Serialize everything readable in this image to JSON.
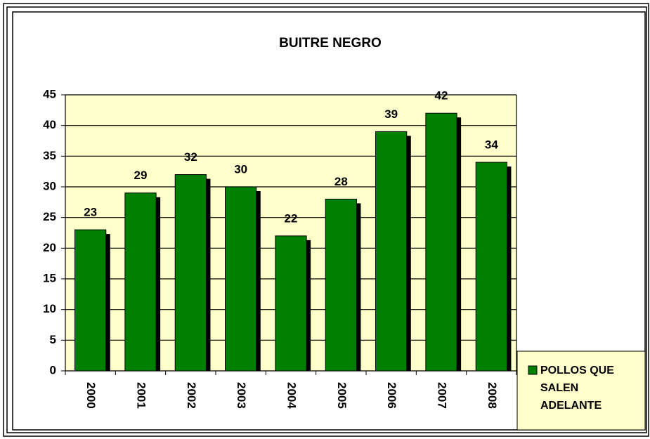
{
  "chart_data": {
    "type": "bar",
    "title": "BUITRE NEGRO",
    "categories": [
      "2000",
      "2001",
      "2002",
      "2003",
      "2004",
      "2005",
      "2006",
      "2007",
      "2008"
    ],
    "series": [
      {
        "name": "POLLOS QUE SALEN ADELANTE",
        "color": "#008000",
        "values": [
          23,
          29,
          32,
          30,
          22,
          28,
          39,
          42,
          34
        ]
      }
    ],
    "ylim": [
      0,
      45
    ],
    "yticks": [
      0,
      5,
      10,
      15,
      20,
      25,
      30,
      35,
      40,
      45
    ],
    "grid": true,
    "legend": "bottom-right"
  }
}
